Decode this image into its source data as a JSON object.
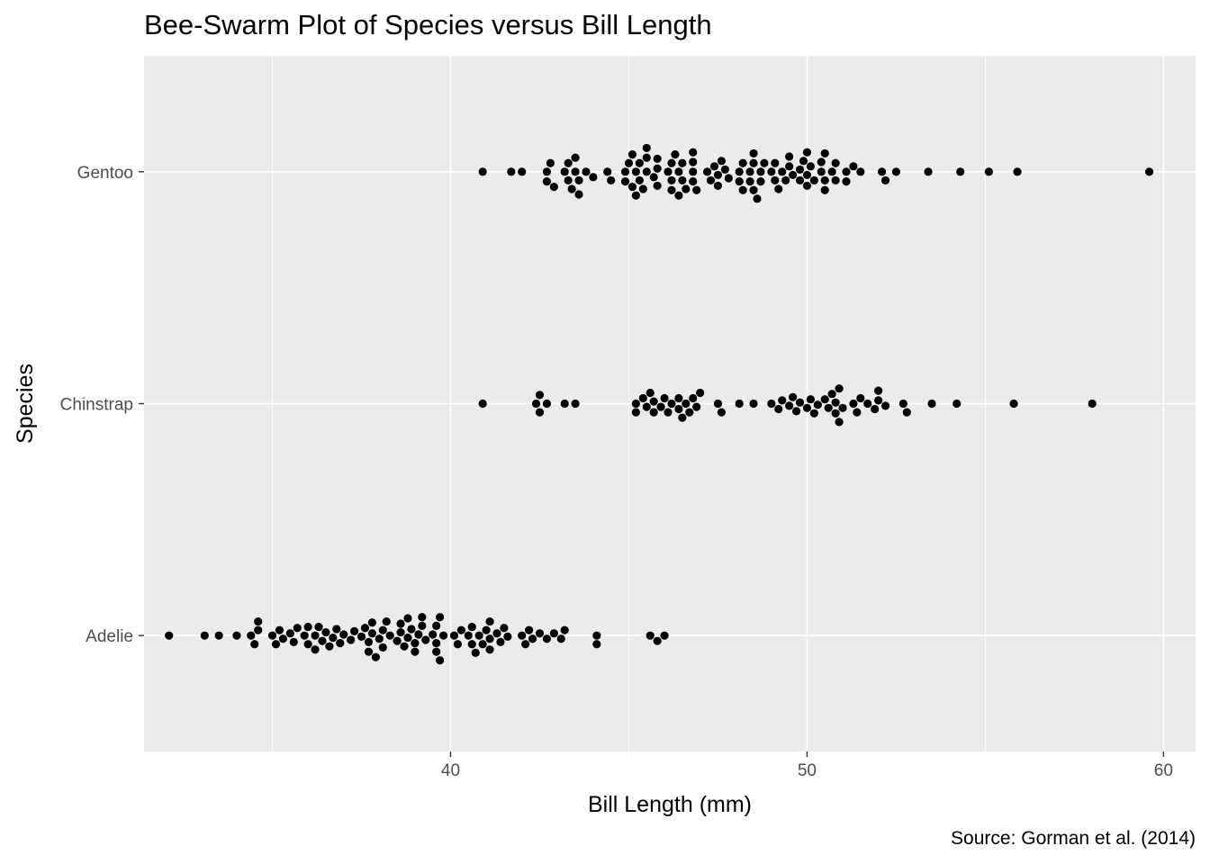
{
  "chart_data": {
    "type": "scatter",
    "subtype": "beeswarm",
    "title": "Bee-Swarm Plot of Species versus Bill Length",
    "caption": "Source: Gorman et al. (2014)",
    "xlabel": "Bill Length (mm)",
    "ylabel": "Species",
    "xlim": [
      31.4,
      60.9
    ],
    "xticks": [
      40,
      50,
      60
    ],
    "xtick_labels": [
      "40",
      "50",
      "60"
    ],
    "categories": [
      "Adelie",
      "Chinstrap",
      "Gentoo"
    ],
    "grid": true,
    "legend": "none",
    "background_color": "#ebebeb",
    "grid_color": "#ffffff",
    "point_color": "#000000",
    "series": [
      {
        "category": "Gentoo",
        "values": [
          40.9,
          41.7,
          42.0,
          42.7,
          42.7,
          42.8,
          42.9,
          43.2,
          43.3,
          43.3,
          43.4,
          43.5,
          43.5,
          43.6,
          43.6,
          43.8,
          44.0,
          44.4,
          44.5,
          44.9,
          44.9,
          45.0,
          45.1,
          45.1,
          45.2,
          45.2,
          45.3,
          45.3,
          45.4,
          45.5,
          45.5,
          45.5,
          45.7,
          45.8,
          45.8,
          45.8,
          46.1,
          46.2,
          46.2,
          46.2,
          46.3,
          46.4,
          46.4,
          46.5,
          46.5,
          46.6,
          46.8,
          46.8,
          46.8,
          46.8,
          46.9,
          47.2,
          47.3,
          47.4,
          47.5,
          47.5,
          47.6,
          47.7,
          47.8,
          48.1,
          48.1,
          48.2,
          48.2,
          48.4,
          48.4,
          48.5,
          48.5,
          48.5,
          48.6,
          48.7,
          48.7,
          48.8,
          49.0,
          49.1,
          49.1,
          49.2,
          49.3,
          49.4,
          49.5,
          49.5,
          49.6,
          49.8,
          49.8,
          49.9,
          50.0,
          50.0,
          50.0,
          50.1,
          50.2,
          50.4,
          50.4,
          50.5,
          50.5,
          50.5,
          50.7,
          50.8,
          50.8,
          51.1,
          51.1,
          51.3,
          51.5,
          52.1,
          52.2,
          52.5,
          53.4,
          54.3,
          55.1,
          55.9,
          59.6
        ]
      },
      {
        "category": "Chinstrap",
        "values": [
          40.9,
          42.4,
          42.5,
          42.5,
          42.7,
          43.2,
          43.5,
          45.2,
          45.2,
          45.4,
          45.5,
          45.6,
          45.7,
          45.7,
          45.9,
          46.0,
          46.1,
          46.2,
          46.4,
          46.4,
          46.5,
          46.6,
          46.7,
          46.8,
          46.9,
          47.0,
          47.5,
          47.6,
          48.1,
          48.5,
          49.0,
          49.2,
          49.3,
          49.5,
          49.6,
          49.7,
          49.8,
          50.0,
          50.1,
          50.2,
          50.3,
          50.5,
          50.6,
          50.7,
          50.8,
          50.8,
          50.9,
          50.9,
          51.0,
          51.3,
          51.4,
          51.5,
          51.7,
          51.9,
          52.0,
          52.0,
          52.2,
          52.7,
          52.8,
          53.5,
          54.2,
          55.8,
          58.0
        ]
      },
      {
        "category": "Adelie",
        "values": [
          32.1,
          33.1,
          33.5,
          34.0,
          34.4,
          34.5,
          34.6,
          34.6,
          35.0,
          35.1,
          35.2,
          35.3,
          35.5,
          35.6,
          35.7,
          35.9,
          36.0,
          36.0,
          36.2,
          36.2,
          36.3,
          36.4,
          36.5,
          36.6,
          36.7,
          36.8,
          36.9,
          37.0,
          37.2,
          37.3,
          37.5,
          37.6,
          37.7,
          37.7,
          37.8,
          37.8,
          37.9,
          38.0,
          38.1,
          38.1,
          38.2,
          38.3,
          38.5,
          38.6,
          38.6,
          38.7,
          38.8,
          38.8,
          38.9,
          39.0,
          39.0,
          39.1,
          39.2,
          39.2,
          39.3,
          39.5,
          39.6,
          39.6,
          39.6,
          39.7,
          39.7,
          39.8,
          40.1,
          40.2,
          40.3,
          40.5,
          40.6,
          40.6,
          40.7,
          40.8,
          40.9,
          41.0,
          41.1,
          41.1,
          41.1,
          41.3,
          41.4,
          41.5,
          41.6,
          42.0,
          42.1,
          42.2,
          42.3,
          42.5,
          42.7,
          42.9,
          43.1,
          43.2,
          44.1,
          44.1,
          45.6,
          45.8,
          46.0
        ]
      }
    ]
  }
}
